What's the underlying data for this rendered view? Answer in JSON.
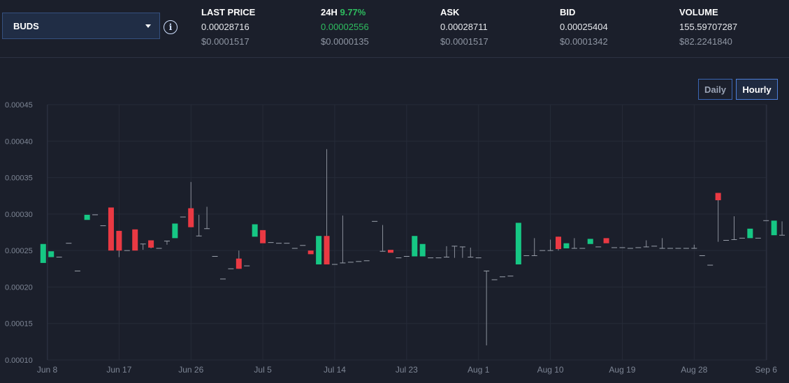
{
  "market": {
    "selected": "BUDS"
  },
  "stats": {
    "last": {
      "label": "LAST PRICE",
      "value": "0.00028716",
      "usd": "$0.0001517"
    },
    "change": {
      "label": "24H",
      "pct": "9.77%",
      "value": "0.00002556",
      "usd": "$0.0000135"
    },
    "ask": {
      "label": "ASK",
      "value": "0.00028711",
      "usd": "$0.0001517"
    },
    "bid": {
      "label": "BID",
      "value": "0.00025404",
      "usd": "$0.0001342"
    },
    "volume": {
      "label": "VOLUME",
      "value": "155.59707287",
      "usd": "$82.2241840"
    }
  },
  "range_buttons": {
    "daily": "Daily",
    "hourly": "Hourly",
    "active": "Hourly"
  },
  "colors": {
    "up": "#16c784",
    "down": "#ea3943",
    "grid": "#262b38"
  },
  "chart_data": {
    "type": "candlestick",
    "ylim": [
      0.0001,
      0.00045
    ],
    "y_ticks": [
      "0.00010",
      "0.00015",
      "0.00020",
      "0.00025",
      "0.00030",
      "0.00035",
      "0.00040",
      "0.00045"
    ],
    "x_ticks": [
      "Jun 8",
      "Jun 17",
      "Jun 26",
      "Jul 5",
      "Jul 14",
      "Jul 23",
      "Aug 1",
      "Aug 10",
      "Aug 19",
      "Aug 28",
      "Sep 6"
    ],
    "x_tick_days": [
      0,
      9,
      18,
      27,
      36,
      45,
      54,
      63,
      72,
      81,
      90
    ],
    "candles": [
      {
        "d": -0.5,
        "o": 0.000233,
        "h": 0.000259,
        "l": 0.000233,
        "c": 0.000259
      },
      {
        "d": 0.5,
        "o": 0.000241,
        "h": 0.000249,
        "l": 0.000241,
        "c": 0.000249
      },
      {
        "d": 1.5,
        "o": 0.000241,
        "h": 0.000241,
        "l": 0.000241,
        "c": 0.000241
      },
      {
        "d": 2.7,
        "o": 0.00026,
        "h": 0.00026,
        "l": 0.00026,
        "c": 0.00026
      },
      {
        "d": 3.8,
        "o": 0.000222,
        "h": 0.000222,
        "l": 0.000222,
        "c": 0.000222
      },
      {
        "d": 5.0,
        "o": 0.000292,
        "h": 0.000299,
        "l": 0.000292,
        "c": 0.000299
      },
      {
        "d": 6.0,
        "o": 0.000299,
        "h": 0.000299,
        "l": 0.000299,
        "c": 0.000299
      },
      {
        "d": 7.0,
        "o": 0.000284,
        "h": 0.000284,
        "l": 0.000284,
        "c": 0.000284
      },
      {
        "d": 8.0,
        "o": 0.000309,
        "h": 0.000309,
        "l": 0.00025,
        "c": 0.00025
      },
      {
        "d": 9.0,
        "o": 0.000277,
        "h": 0.000277,
        "l": 0.000241,
        "c": 0.00025
      },
      {
        "d": 10.0,
        "o": 0.00025,
        "h": 0.00025,
        "l": 0.00025,
        "c": 0.00025
      },
      {
        "d": 11.0,
        "o": 0.000279,
        "h": 0.000279,
        "l": 0.00025,
        "c": 0.00025
      },
      {
        "d": 12.0,
        "o": 0.000259,
        "h": 0.000259,
        "l": 0.000251,
        "c": 0.000259
      },
      {
        "d": 13.0,
        "o": 0.000264,
        "h": 0.000264,
        "l": 0.000253,
        "c": 0.000254
      },
      {
        "d": 14.0,
        "o": 0.000253,
        "h": 0.000253,
        "l": 0.000253,
        "c": 0.000253
      },
      {
        "d": 15.0,
        "o": 0.000263,
        "h": 0.000263,
        "l": 0.000258,
        "c": 0.000263
      },
      {
        "d": 16.0,
        "o": 0.000267,
        "h": 0.000287,
        "l": 0.000267,
        "c": 0.000287
      },
      {
        "d": 17.0,
        "o": 0.000296,
        "h": 0.000296,
        "l": 0.000296,
        "c": 0.000296
      },
      {
        "d": 18.0,
        "o": 0.000308,
        "h": 0.000344,
        "l": 0.000282,
        "c": 0.000282
      },
      {
        "d": 19.0,
        "o": 0.00027,
        "h": 0.000299,
        "l": 0.00027,
        "c": 0.00027
      },
      {
        "d": 20.0,
        "o": 0.00028,
        "h": 0.00031,
        "l": 0.00028,
        "c": 0.00028
      },
      {
        "d": 21.0,
        "o": 0.000242,
        "h": 0.000242,
        "l": 0.000242,
        "c": 0.000242
      },
      {
        "d": 22.0,
        "o": 0.000211,
        "h": 0.000211,
        "l": 0.000211,
        "c": 0.000211
      },
      {
        "d": 23.0,
        "o": 0.000225,
        "h": 0.000225,
        "l": 0.000225,
        "c": 0.000225
      },
      {
        "d": 24.0,
        "o": 0.000239,
        "h": 0.00025,
        "l": 0.000225,
        "c": 0.000225
      },
      {
        "d": 25.0,
        "o": 0.000229,
        "h": 0.000229,
        "l": 0.000229,
        "c": 0.000229
      },
      {
        "d": 26.0,
        "o": 0.000269,
        "h": 0.000286,
        "l": 0.000269,
        "c": 0.000286
      },
      {
        "d": 27.0,
        "o": 0.000278,
        "h": 0.000278,
        "l": 0.00026,
        "c": 0.00026
      },
      {
        "d": 28.0,
        "o": 0.000261,
        "h": 0.000261,
        "l": 0.000261,
        "c": 0.000261
      },
      {
        "d": 29.0,
        "o": 0.00026,
        "h": 0.00026,
        "l": 0.00026,
        "c": 0.00026
      },
      {
        "d": 30.0,
        "o": 0.00026,
        "h": 0.00026,
        "l": 0.00026,
        "c": 0.00026
      },
      {
        "d": 31.0,
        "o": 0.000253,
        "h": 0.000253,
        "l": 0.000253,
        "c": 0.000253
      },
      {
        "d": 32.0,
        "o": 0.000257,
        "h": 0.000257,
        "l": 0.000257,
        "c": 0.000257
      },
      {
        "d": 33.0,
        "o": 0.00025,
        "h": 0.00025,
        "l": 0.000245,
        "c": 0.000245
      },
      {
        "d": 34.0,
        "o": 0.000231,
        "h": 0.00027,
        "l": 0.000231,
        "c": 0.00027
      },
      {
        "d": 35.0,
        "o": 0.00027,
        "h": 0.000389,
        "l": 0.000231,
        "c": 0.000231
      },
      {
        "d": 36.0,
        "o": 0.000231,
        "h": 0.000231,
        "l": 0.000231,
        "c": 0.000231
      },
      {
        "d": 37.0,
        "o": 0.000233,
        "h": 0.000298,
        "l": 0.000233,
        "c": 0.000233
      },
      {
        "d": 38.0,
        "o": 0.000234,
        "h": 0.000234,
        "l": 0.000234,
        "c": 0.000234
      },
      {
        "d": 39.0,
        "o": 0.000235,
        "h": 0.000235,
        "l": 0.000235,
        "c": 0.000235
      },
      {
        "d": 40.0,
        "o": 0.000236,
        "h": 0.000236,
        "l": 0.000236,
        "c": 0.000236
      },
      {
        "d": 41.0,
        "o": 0.00029,
        "h": 0.00029,
        "l": 0.00029,
        "c": 0.00029
      },
      {
        "d": 42.0,
        "o": 0.000249,
        "h": 0.000285,
        "l": 0.000249,
        "c": 0.000249
      },
      {
        "d": 43.0,
        "o": 0.000251,
        "h": 0.000251,
        "l": 0.000247,
        "c": 0.000247
      },
      {
        "d": 44.0,
        "o": 0.00024,
        "h": 0.00024,
        "l": 0.00024,
        "c": 0.00024
      },
      {
        "d": 45.0,
        "o": 0.000242,
        "h": 0.000242,
        "l": 0.000242,
        "c": 0.000242
      },
      {
        "d": 46.0,
        "o": 0.000242,
        "h": 0.00027,
        "l": 0.000242,
        "c": 0.00027
      },
      {
        "d": 47.0,
        "o": 0.000242,
        "h": 0.000259,
        "l": 0.000242,
        "c": 0.000259
      },
      {
        "d": 48.0,
        "o": 0.00024,
        "h": 0.00024,
        "l": 0.00024,
        "c": 0.00024
      },
      {
        "d": 49.0,
        "o": 0.00024,
        "h": 0.00024,
        "l": 0.00024,
        "c": 0.00024
      },
      {
        "d": 50.0,
        "o": 0.000241,
        "h": 0.000256,
        "l": 0.000241,
        "c": 0.000241
      },
      {
        "d": 51.0,
        "o": 0.000256,
        "h": 0.000256,
        "l": 0.00024,
        "c": 0.000256
      },
      {
        "d": 52.0,
        "o": 0.000255,
        "h": 0.000255,
        "l": 0.00024,
        "c": 0.000255
      },
      {
        "d": 53.0,
        "o": 0.000241,
        "h": 0.000254,
        "l": 0.000241,
        "c": 0.000241
      },
      {
        "d": 54.0,
        "o": 0.00024,
        "h": 0.00024,
        "l": 0.00024,
        "c": 0.00024
      },
      {
        "d": 55.0,
        "o": 0.000222,
        "h": 0.000222,
        "l": 0.00012,
        "c": 0.000222
      },
      {
        "d": 56.0,
        "o": 0.00021,
        "h": 0.00021,
        "l": 0.00021,
        "c": 0.00021
      },
      {
        "d": 57.0,
        "o": 0.000214,
        "h": 0.000214,
        "l": 0.000214,
        "c": 0.000214
      },
      {
        "d": 58.0,
        "o": 0.000215,
        "h": 0.000215,
        "l": 0.000215,
        "c": 0.000215
      },
      {
        "d": 59.0,
        "o": 0.000231,
        "h": 0.000288,
        "l": 0.000231,
        "c": 0.000288
      },
      {
        "d": 60.0,
        "o": 0.000243,
        "h": 0.000243,
        "l": 0.000243,
        "c": 0.000243
      },
      {
        "d": 61.0,
        "o": 0.000243,
        "h": 0.000267,
        "l": 0.000243,
        "c": 0.000243
      },
      {
        "d": 62.0,
        "o": 0.00025,
        "h": 0.00025,
        "l": 0.00025,
        "c": 0.00025
      },
      {
        "d": 63.0,
        "o": 0.00025,
        "h": 0.000265,
        "l": 0.00025,
        "c": 0.00025
      },
      {
        "d": 64.0,
        "o": 0.000269,
        "h": 0.000269,
        "l": 0.00025,
        "c": 0.000252
      },
      {
        "d": 65.0,
        "o": 0.000253,
        "h": 0.00026,
        "l": 0.000253,
        "c": 0.00026
      },
      {
        "d": 66.0,
        "o": 0.000253,
        "h": 0.000267,
        "l": 0.000253,
        "c": 0.000253
      },
      {
        "d": 67.0,
        "o": 0.000253,
        "h": 0.000253,
        "l": 0.000253,
        "c": 0.000253
      },
      {
        "d": 68.0,
        "o": 0.000259,
        "h": 0.000266,
        "l": 0.000259,
        "c": 0.000266
      },
      {
        "d": 69.0,
        "o": 0.000255,
        "h": 0.000255,
        "l": 0.000255,
        "c": 0.000255
      },
      {
        "d": 70.0,
        "o": 0.000267,
        "h": 0.000267,
        "l": 0.00026,
        "c": 0.00026
      },
      {
        "d": 71.0,
        "o": 0.000254,
        "h": 0.000254,
        "l": 0.000254,
        "c": 0.000254
      },
      {
        "d": 72.0,
        "o": 0.000254,
        "h": 0.000254,
        "l": 0.000254,
        "c": 0.000254
      },
      {
        "d": 73.0,
        "o": 0.000253,
        "h": 0.000253,
        "l": 0.000253,
        "c": 0.000253
      },
      {
        "d": 74.0,
        "o": 0.000254,
        "h": 0.000254,
        "l": 0.000254,
        "c": 0.000254
      },
      {
        "d": 75.0,
        "o": 0.000255,
        "h": 0.000264,
        "l": 0.000255,
        "c": 0.000255
      },
      {
        "d": 76.0,
        "o": 0.000256,
        "h": 0.000256,
        "l": 0.000256,
        "c": 0.000256
      },
      {
        "d": 77.0,
        "o": 0.000253,
        "h": 0.000267,
        "l": 0.000253,
        "c": 0.000253
      },
      {
        "d": 78.0,
        "o": 0.000253,
        "h": 0.000253,
        "l": 0.000253,
        "c": 0.000253
      },
      {
        "d": 79.0,
        "o": 0.000253,
        "h": 0.000253,
        "l": 0.000253,
        "c": 0.000253
      },
      {
        "d": 80.0,
        "o": 0.000253,
        "h": 0.000253,
        "l": 0.000253,
        "c": 0.000253
      },
      {
        "d": 81.0,
        "o": 0.000253,
        "h": 0.000258,
        "l": 0.000253,
        "c": 0.000253
      },
      {
        "d": 82.0,
        "o": 0.000243,
        "h": 0.000243,
        "l": 0.000243,
        "c": 0.000243
      },
      {
        "d": 83.0,
        "o": 0.00023,
        "h": 0.00023,
        "l": 0.00023,
        "c": 0.00023
      },
      {
        "d": 84.0,
        "o": 0.000329,
        "h": 0.000329,
        "l": 0.000262,
        "c": 0.000319
      },
      {
        "d": 85.0,
        "o": 0.000264,
        "h": 0.000264,
        "l": 0.000264,
        "c": 0.000264
      },
      {
        "d": 86.0,
        "o": 0.000265,
        "h": 0.000297,
        "l": 0.000265,
        "c": 0.000265
      },
      {
        "d": 87.0,
        "o": 0.000267,
        "h": 0.000267,
        "l": 0.000267,
        "c": 0.000267
      },
      {
        "d": 88.0,
        "o": 0.000267,
        "h": 0.00028,
        "l": 0.000267,
        "c": 0.00028
      },
      {
        "d": 89.0,
        "o": 0.000267,
        "h": 0.000267,
        "l": 0.000267,
        "c": 0.000267
      },
      {
        "d": 90.0,
        "o": 0.000291,
        "h": 0.000291,
        "l": 0.000291,
        "c": 0.000291
      },
      {
        "d": 91.0,
        "o": 0.000271,
        "h": 0.000291,
        "l": 0.000271,
        "c": 0.000291
      },
      {
        "d": 92.0,
        "o": 0.000271,
        "h": 0.00029,
        "l": 0.000271,
        "c": 0.000271
      }
    ]
  }
}
